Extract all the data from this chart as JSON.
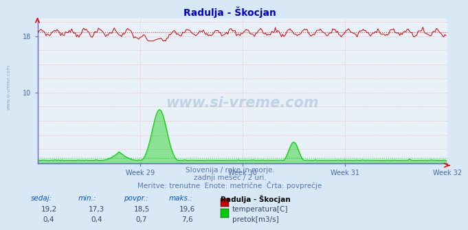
{
  "title": "Radulja - Škocjan",
  "bg_color": "#d8e8f4",
  "plot_bg_color": "#e8f0f8",
  "spine_color": "#6666cc",
  "grid_color_h": "#ffaaaa",
  "grid_color_v": "#ffaaaa",
  "temp_color": "#cc0000",
  "flow_color": "#00cc00",
  "flow_fill_color": "#00cc00",
  "x_labels": [
    "Week 29",
    "Week 30",
    "Week 31",
    "Week 32"
  ],
  "y_ticks": [
    10,
    18
  ],
  "ylim": [
    0,
    20.5
  ],
  "xlim": [
    0,
    336
  ],
  "n_points": 336,
  "temp_base": 18.5,
  "temp_avg": 18.5,
  "flow_avg": 0.7,
  "subtitle1": "Slovenija / reke in morje.",
  "subtitle2": "zadnji mesec / 2 uri.",
  "subtitle3": "Meritve: trenutne  Enote: metrične  Črta: povprečje",
  "legend_title": "Radulja - Škocjan",
  "label_sedaj": "sedaj:",
  "label_min": "min.:",
  "label_povpr": "povpr.:",
  "label_maks": "maks.:",
  "temp_sedaj": "19,2",
  "temp_min_val": "17,3",
  "temp_povpr": "18,5",
  "temp_maks": "19,6",
  "flow_sedaj": "0,4",
  "flow_min_val": "0,4",
  "flow_povpr": "0,7",
  "flow_maks": "7,6",
  "label_temp": "temperatura[C]",
  "label_flow": "pretok[m3/s]",
  "watermark": "www.si-vreme.com",
  "text_color": "#5577bb",
  "text_color2": "#4466aa"
}
